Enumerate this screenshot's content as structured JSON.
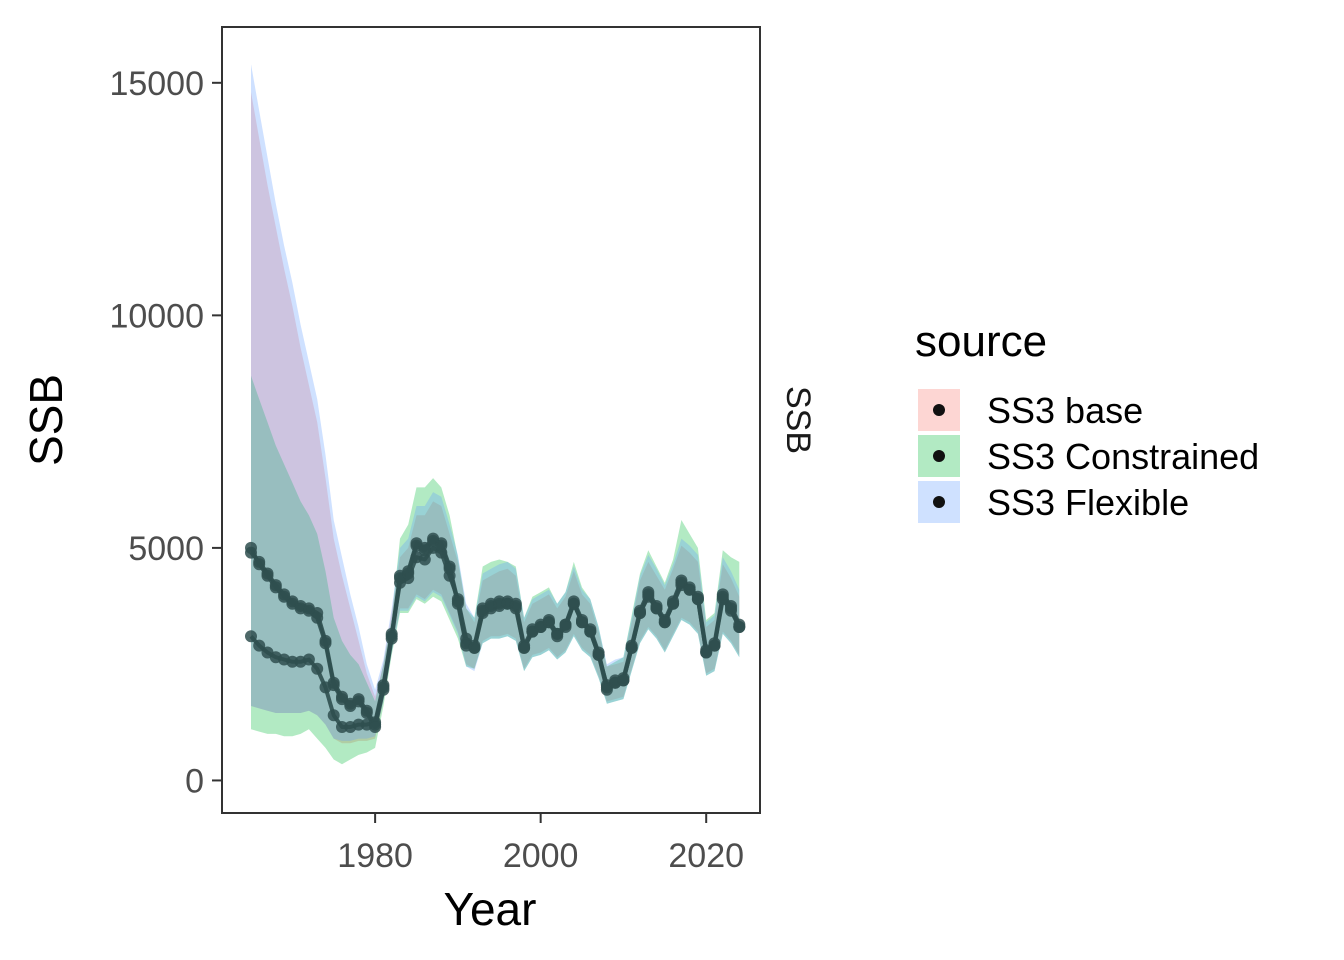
{
  "chart_data": {
    "type": "line",
    "xlabel": "Year",
    "ylabel": "SSB",
    "facet_label": "SSB",
    "xlim": [
      1961.5,
      2026.5
    ],
    "ylim": [
      -700,
      16200
    ],
    "xticks": [
      1980,
      2000,
      2020
    ],
    "yticks": [
      0,
      5000,
      10000,
      15000
    ],
    "legend": {
      "title": "source",
      "position": "right",
      "entries": [
        "SS3 base",
        "SS3 Constrained",
        "SS3 Flexible"
      ]
    },
    "x": [
      1965,
      1966,
      1967,
      1968,
      1969,
      1970,
      1971,
      1972,
      1973,
      1974,
      1975,
      1976,
      1977,
      1978,
      1979,
      1980,
      1981,
      1982,
      1983,
      1984,
      1985,
      1986,
      1987,
      1988,
      1989,
      1990,
      1991,
      1992,
      1993,
      1994,
      1995,
      1996,
      1997,
      1998,
      1999,
      2000,
      2001,
      2002,
      2003,
      2004,
      2005,
      2006,
      2007,
      2008,
      2009,
      2010,
      2011,
      2012,
      2013,
      2014,
      2015,
      2016,
      2017,
      2018,
      2019,
      2020,
      2021,
      2022,
      2023,
      2024
    ],
    "series": [
      {
        "name": "SS3 base",
        "color": "#F8766D",
        "values": [
          3100,
          2900,
          2750,
          2650,
          2600,
          2550,
          2550,
          2600,
          2400,
          2000,
          1400,
          1150,
          1150,
          1200,
          1200,
          1250,
          2050,
          3150,
          4250,
          4350,
          4800,
          4750,
          5000,
          4900,
          4400,
          3900,
          3050,
          2850,
          3600,
          3700,
          3750,
          3800,
          3700,
          2850,
          3200,
          3300,
          3400,
          3150,
          3350,
          3800,
          3400,
          3200,
          2700,
          2050,
          2100,
          2150,
          2850,
          3600,
          3950,
          3700,
          3400,
          3800,
          4200,
          4100,
          3900,
          2750,
          2900,
          3900,
          3650,
          3300
        ],
        "lower": [
          1600,
          1550,
          1500,
          1450,
          1450,
          1450,
          1450,
          1500,
          1400,
          1200,
          900,
          800,
          800,
          850,
          850,
          900,
          1700,
          2800,
          3700,
          3700,
          4000,
          3900,
          4100,
          4000,
          3600,
          3200,
          2500,
          2400,
          3000,
          3100,
          3100,
          3150,
          3050,
          2400,
          2700,
          2750,
          2850,
          2650,
          2800,
          3150,
          2850,
          2700,
          2250,
          1700,
          1750,
          1800,
          2400,
          3000,
          3300,
          3100,
          2800,
          3150,
          3500,
          3400,
          3200,
          2300,
          2400,
          3200,
          3000,
          2700
        ],
        "upper": [
          14800,
          13800,
          12800,
          11900,
          11000,
          10200,
          9300,
          8500,
          7700,
          6500,
          5200,
          4400,
          3700,
          3000,
          2300,
          1800,
          2500,
          3600,
          4800,
          5000,
          5700,
          5700,
          6000,
          5900,
          5300,
          4700,
          3700,
          3400,
          4300,
          4400,
          4500,
          4550,
          4400,
          3400,
          3800,
          3900,
          4000,
          3700,
          3950,
          4500,
          4000,
          3800,
          3200,
          2450,
          2500,
          2550,
          3400,
          4300,
          4700,
          4400,
          4100,
          4550,
          5050,
          4900,
          4700,
          3300,
          3450,
          4650,
          4350,
          3950
        ]
      },
      {
        "name": "SS3 Constrained",
        "color": "#00BA38",
        "values": [
          4900,
          4700,
          4450,
          4200,
          4000,
          3850,
          3750,
          3700,
          3600,
          3000,
          2100,
          1800,
          1650,
          1750,
          1500,
          1200,
          2000,
          3100,
          4400,
          4500,
          5100,
          5000,
          5200,
          5100,
          4600,
          3850,
          2950,
          2900,
          3700,
          3800,
          3850,
          3850,
          3800,
          2900,
          3250,
          3350,
          3450,
          3150,
          3350,
          3850,
          3450,
          3250,
          2750,
          2000,
          2150,
          2200,
          2900,
          3650,
          4050,
          3750,
          3450,
          3850,
          4300,
          4150,
          3950,
          2800,
          2950,
          4000,
          3750,
          3350
        ],
        "lower": [
          1100,
          1050,
          1000,
          1000,
          950,
          950,
          1000,
          1100,
          900,
          700,
          450,
          350,
          450,
          550,
          600,
          700,
          1600,
          2700,
          3600,
          3600,
          3900,
          3800,
          3950,
          3850,
          3450,
          3050,
          2450,
          2400,
          2950,
          3050,
          3050,
          3100,
          3000,
          2350,
          2650,
          2700,
          2800,
          2600,
          2750,
          3100,
          2800,
          2650,
          2200,
          1650,
          1700,
          1750,
          2350,
          2950,
          3250,
          3050,
          2750,
          3100,
          3450,
          3350,
          3150,
          2250,
          2350,
          3150,
          2950,
          2650
        ],
        "upper": [
          8700,
          8200,
          7700,
          7200,
          6800,
          6400,
          6000,
          5700,
          5300,
          4500,
          3500,
          3000,
          2700,
          2500,
          2100,
          1700,
          2500,
          3500,
          5200,
          5500,
          6300,
          6300,
          6500,
          6300,
          5700,
          4800,
          3700,
          3500,
          4600,
          4700,
          4750,
          4700,
          4600,
          3500,
          3950,
          4050,
          4150,
          3800,
          4050,
          4700,
          4150,
          3900,
          3300,
          2450,
          2550,
          2650,
          3550,
          4450,
          4950,
          4600,
          4250,
          4750,
          5600,
          5300,
          5000,
          3450,
          3600,
          4950,
          4800,
          4700
        ]
      },
      {
        "name": "SS3 Flexible",
        "color": "#619CFF",
        "values": [
          5000,
          4650,
          4400,
          4150,
          3950,
          3800,
          3700,
          3650,
          3500,
          2950,
          2050,
          1750,
          1600,
          1700,
          1450,
          1150,
          1950,
          3050,
          4350,
          4450,
          5050,
          4950,
          5150,
          5050,
          4550,
          3800,
          2900,
          2850,
          3650,
          3750,
          3800,
          3800,
          3750,
          2850,
          3200,
          3300,
          3400,
          3100,
          3300,
          3800,
          3400,
          3200,
          2700,
          1950,
          2100,
          2150,
          2850,
          3600,
          4000,
          3700,
          3400,
          3800,
          4250,
          4100,
          3900,
          2750,
          2900,
          3950,
          3700,
          3300
        ],
        "lower": [
          1600,
          1550,
          1500,
          1450,
          1450,
          1450,
          1450,
          1500,
          1400,
          1200,
          900,
          850,
          850,
          900,
          900,
          950,
          1700,
          2750,
          3650,
          3650,
          3950,
          3850,
          4050,
          3950,
          3550,
          3150,
          2450,
          2350,
          2950,
          3050,
          3050,
          3100,
          3000,
          2350,
          2650,
          2700,
          2800,
          2600,
          2750,
          3100,
          2800,
          2650,
          2200,
          1650,
          1700,
          1750,
          2350,
          2950,
          3250,
          3050,
          2750,
          3100,
          3450,
          3350,
          3150,
          2250,
          2350,
          3150,
          2950,
          2650
        ],
        "upper": [
          15400,
          14400,
          13400,
          12400,
          11500,
          10700,
          9800,
          9000,
          8200,
          7000,
          5600,
          4800,
          4000,
          3300,
          2500,
          1950,
          2600,
          3700,
          5000,
          5200,
          5900,
          5900,
          6200,
          6100,
          5500,
          4850,
          3800,
          3500,
          4450,
          4550,
          4650,
          4700,
          4550,
          3500,
          3900,
          4000,
          4100,
          3800,
          4050,
          4600,
          4100,
          3900,
          3300,
          2500,
          2600,
          2650,
          3500,
          4400,
          4850,
          4550,
          4200,
          4650,
          5200,
          5050,
          4850,
          3400,
          3550,
          4800,
          4500,
          4100
        ]
      }
    ]
  }
}
